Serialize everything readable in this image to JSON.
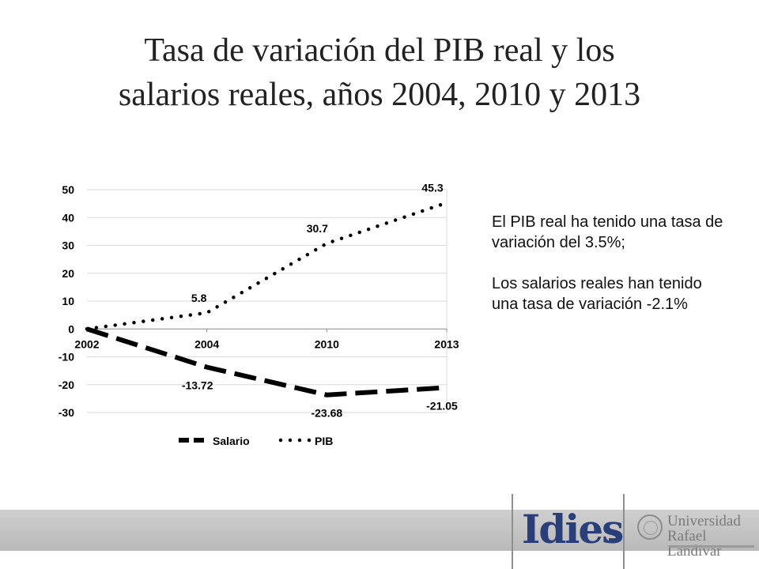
{
  "title": {
    "line1": "Tasa de variación del PIB real y los",
    "line2": "salarios reales, años 2004, 2010 y 2013"
  },
  "notes": {
    "p1": "El  PIB real ha tenido una tasa de variación del  3.5%;",
    "p2": "Los salarios reales han tenido una tasa de variación  -2.1%"
  },
  "logos": {
    "idies": "Idies",
    "university_line1": "Universidad",
    "university_line2": "Rafael Landívar"
  },
  "colors": {
    "series_line": "#000000",
    "gridline": "#d9d9d9",
    "idies_blue": "#2a3f7a",
    "footer_band": "#c4c4c4"
  },
  "chart_data": {
    "type": "line",
    "categories": [
      "2002",
      "2004",
      "2010",
      "2013"
    ],
    "ylim": [
      -30,
      50
    ],
    "yticks": [
      50,
      40,
      30,
      20,
      10,
      0,
      -10,
      -20,
      -30
    ],
    "grid": true,
    "legend_position": "bottom",
    "series": [
      {
        "name": "Salario",
        "style": "dashed",
        "values": [
          0,
          -13.72,
          -23.68,
          -21.05
        ],
        "labels": [
          "",
          "-13.72",
          "-23.68",
          "-21.05"
        ]
      },
      {
        "name": "PIB",
        "style": "dotted",
        "values": [
          0,
          5.8,
          30.7,
          45.3
        ],
        "labels": [
          "",
          "5.8",
          "30.7",
          "45.3"
        ]
      }
    ]
  }
}
